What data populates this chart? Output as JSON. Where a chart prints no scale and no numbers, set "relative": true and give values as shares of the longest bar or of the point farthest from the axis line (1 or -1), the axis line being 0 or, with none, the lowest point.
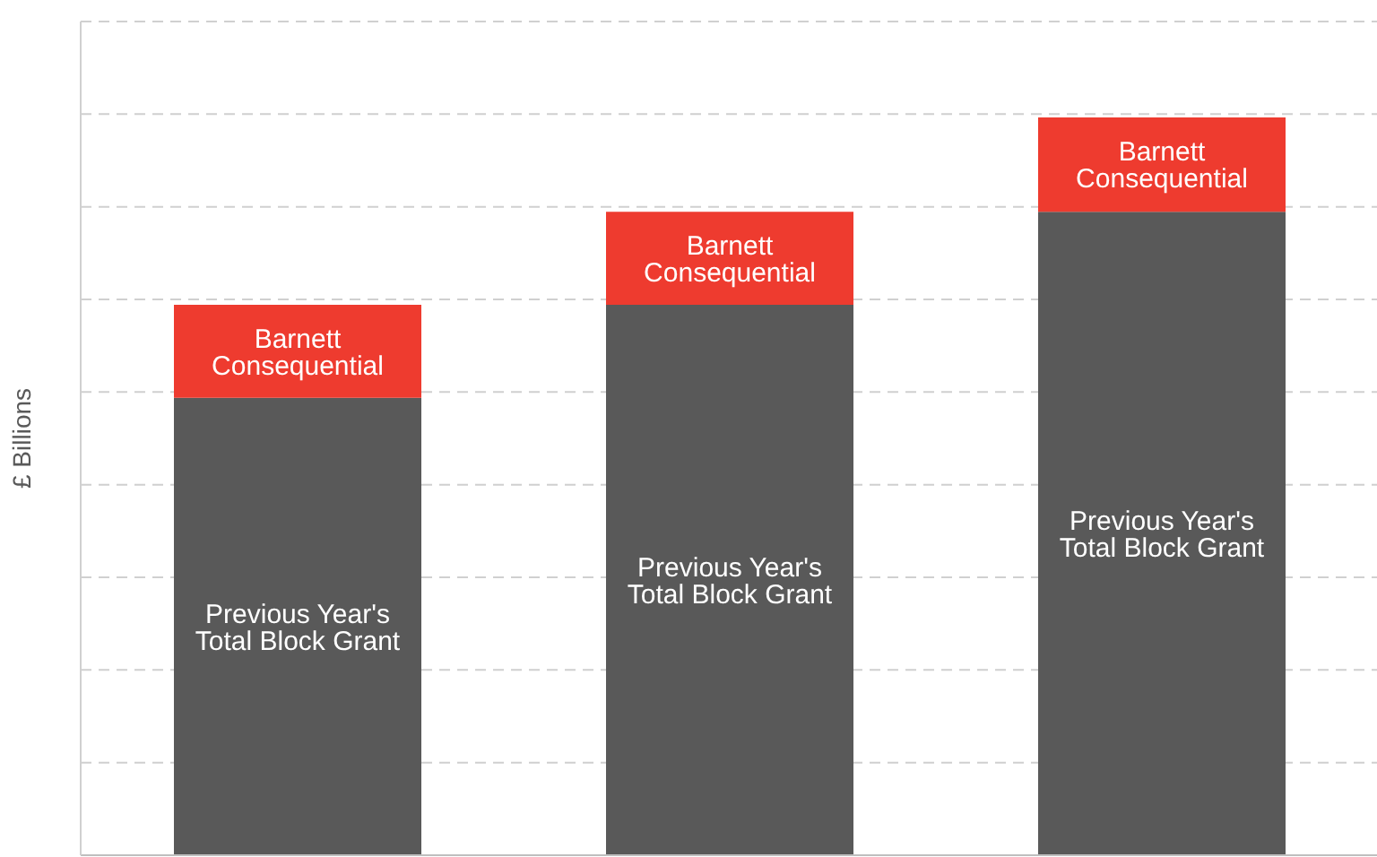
{
  "chart_data": {
    "type": "bar",
    "stacked": true,
    "relative": true,
    "ylabel": "£ Billions",
    "categories": [
      null,
      null,
      null
    ],
    "series": [
      {
        "name": "Previous Year's Total Block Grant",
        "color": "#595959",
        "values": [
          0.62,
          0.746,
          0.872
        ]
      },
      {
        "name": "Barnett Consequential",
        "color": "#ee3b2f",
        "values": [
          0.126,
          0.126,
          0.128
        ]
      }
    ],
    "grid": "y",
    "legend": false
  }
}
